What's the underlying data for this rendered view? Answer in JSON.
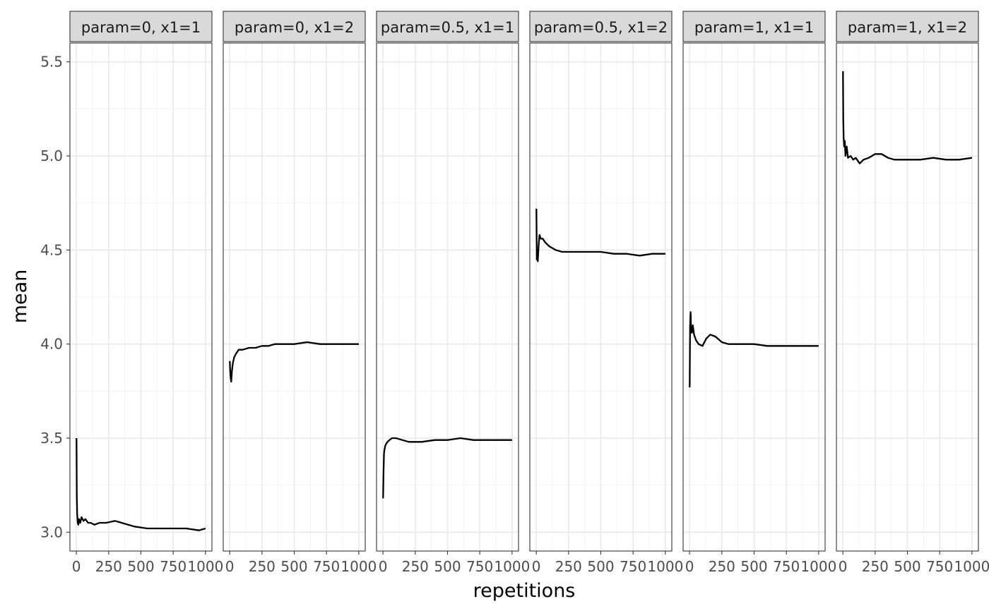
{
  "chart_data": {
    "type": "line",
    "xlabel": "repetitions",
    "ylabel": "mean",
    "xlim": [
      -50,
      1050
    ],
    "ylim": [
      2.9,
      5.6
    ],
    "x_ticks": [
      0,
      250,
      500,
      750,
      1000
    ],
    "x_tick_labels": [
      "0",
      "250",
      "500",
      "750",
      "1000"
    ],
    "y_ticks": [
      3.0,
      3.5,
      4.0,
      4.5,
      5.0,
      5.5
    ],
    "y_tick_labels": [
      "3.0",
      "3.5",
      "4.0",
      "4.5",
      "5.0",
      "5.5"
    ],
    "grid": true,
    "legend": "none",
    "panels": [
      {
        "label": "param=0, x1=1",
        "x": [
          1,
          3,
          6,
          10,
          15,
          20,
          30,
          40,
          55,
          70,
          90,
          110,
          140,
          180,
          230,
          300,
          350,
          450,
          550,
          650,
          750,
          850,
          950,
          1000
        ],
        "values": [
          3.5,
          3.2,
          3.1,
          3.05,
          3.04,
          3.07,
          3.05,
          3.08,
          3.06,
          3.07,
          3.05,
          3.05,
          3.04,
          3.05,
          3.05,
          3.06,
          3.05,
          3.03,
          3.02,
          3.02,
          3.02,
          3.02,
          3.01,
          3.02
        ]
      },
      {
        "label": "param=0, x1=2",
        "x": [
          1,
          4,
          8,
          12,
          18,
          25,
          35,
          50,
          70,
          100,
          150,
          200,
          250,
          300,
          350,
          400,
          500,
          600,
          700,
          800,
          900,
          1000
        ],
        "values": [
          3.91,
          3.85,
          3.82,
          3.8,
          3.86,
          3.9,
          3.93,
          3.95,
          3.97,
          3.97,
          3.98,
          3.98,
          3.99,
          3.99,
          4.0,
          4.0,
          4.0,
          4.01,
          4.0,
          4.0,
          4.0,
          4.0
        ]
      },
      {
        "label": "param=0.5, x1=1",
        "x": [
          1,
          4,
          8,
          12,
          18,
          25,
          35,
          50,
          70,
          100,
          150,
          200,
          250,
          300,
          400,
          500,
          600,
          700,
          800,
          900,
          1000
        ],
        "values": [
          3.18,
          3.32,
          3.42,
          3.44,
          3.46,
          3.47,
          3.48,
          3.49,
          3.5,
          3.5,
          3.49,
          3.48,
          3.48,
          3.48,
          3.49,
          3.49,
          3.5,
          3.49,
          3.49,
          3.49,
          3.49
        ]
      },
      {
        "label": "param=0.5, x1=2",
        "x": [
          1,
          4,
          8,
          12,
          18,
          25,
          35,
          50,
          70,
          100,
          150,
          200,
          250,
          300,
          400,
          500,
          600,
          700,
          800,
          900,
          1000
        ],
        "values": [
          4.72,
          4.45,
          4.5,
          4.44,
          4.52,
          4.58,
          4.56,
          4.56,
          4.54,
          4.52,
          4.5,
          4.49,
          4.49,
          4.49,
          4.49,
          4.49,
          4.48,
          4.48,
          4.47,
          4.48,
          4.48
        ]
      },
      {
        "label": "param=1, x1=1",
        "x": [
          1,
          4,
          8,
          12,
          18,
          25,
          35,
          50,
          70,
          100,
          130,
          160,
          200,
          250,
          300,
          400,
          500,
          600,
          700,
          800,
          900,
          1000
        ],
        "values": [
          3.77,
          4.1,
          4.17,
          4.08,
          4.06,
          4.1,
          4.05,
          4.02,
          4.0,
          3.99,
          4.03,
          4.05,
          4.04,
          4.01,
          4.0,
          4.0,
          4.0,
          3.99,
          3.99,
          3.99,
          3.99,
          3.99
        ]
      },
      {
        "label": "param=1, x1=2",
        "x": [
          1,
          3,
          6,
          10,
          15,
          20,
          30,
          40,
          60,
          80,
          100,
          130,
          160,
          200,
          250,
          300,
          350,
          400,
          500,
          600,
          700,
          800,
          900,
          1000
        ],
        "values": [
          5.45,
          5.2,
          5.1,
          5.05,
          5.08,
          5.0,
          5.05,
          4.99,
          5.0,
          4.98,
          4.99,
          4.96,
          4.98,
          4.99,
          5.01,
          5.01,
          4.99,
          4.98,
          4.98,
          4.98,
          4.99,
          4.98,
          4.98,
          4.99
        ]
      }
    ]
  }
}
